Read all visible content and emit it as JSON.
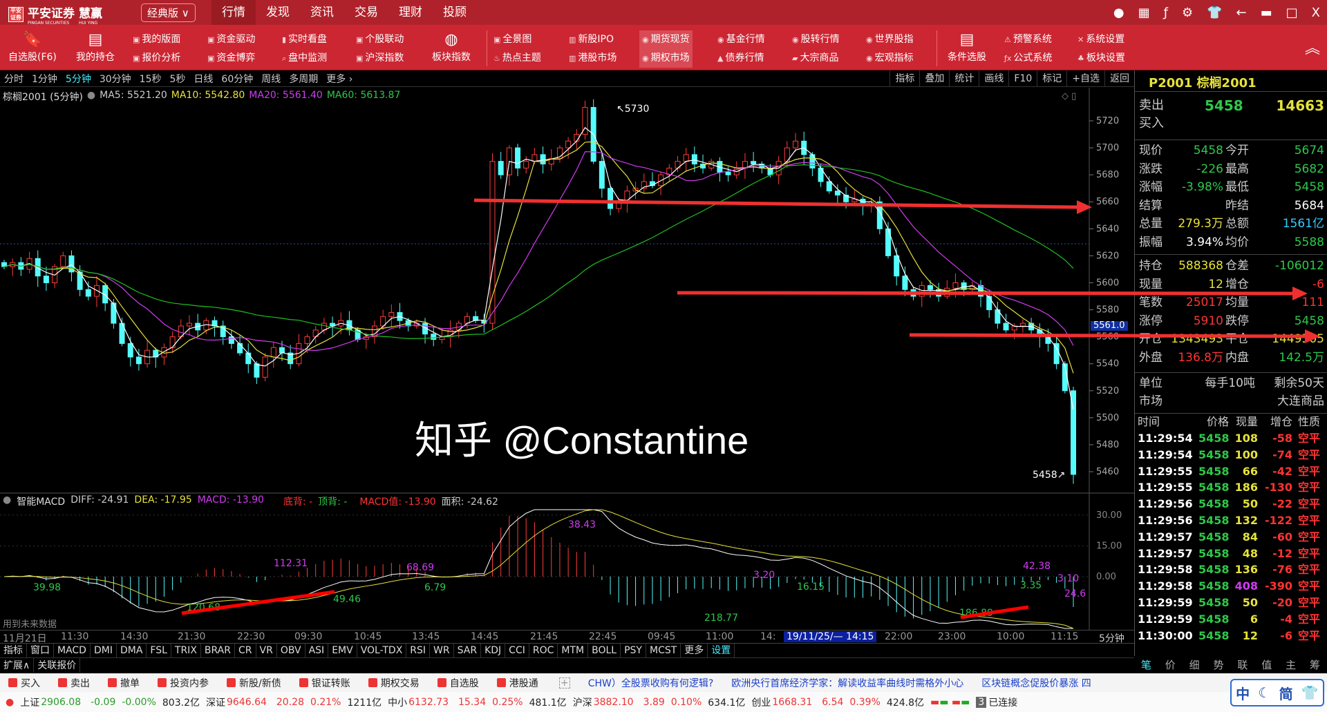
{
  "app": {
    "brand": "平安证券",
    "brand_en": "PINGAN SECURITIES",
    "product": "慧赢",
    "product_en": "HUI YING",
    "edition": "经典版 ∨",
    "nav": [
      "行情",
      "发现",
      "资讯",
      "交易",
      "理财",
      "投顾"
    ],
    "nav_active": "行情"
  },
  "toolbar": {
    "big": [
      {
        "label": "自选股(F6)",
        "icon": "bookmark-icon"
      },
      {
        "label": "我的持仓",
        "icon": "holdings-icon"
      },
      {
        "label": "板块指数",
        "icon": "globe-icon"
      },
      {
        "label": "条件选股",
        "icon": "filter-doc-icon"
      }
    ],
    "pairs": [
      [
        "我的版面",
        "报价分析"
      ],
      [
        "资金驱动",
        "资金博弈"
      ],
      [
        "实时看盘",
        "盘中监测"
      ],
      [
        "个股联动",
        "沪深指数"
      ],
      [
        "全景图",
        "热点主题"
      ],
      [
        "新股IPO",
        "港股市场"
      ],
      [
        "期货现货",
        "期权市场"
      ],
      [
        "基金行情",
        "债券行情"
      ],
      [
        "股转行情",
        "大宗商品"
      ],
      [
        "世界股指",
        "宏观指标"
      ],
      [
        "预警系统",
        "公式系统"
      ],
      [
        "系统设置",
        "板块设置"
      ]
    ],
    "active": "期货现货"
  },
  "periods": [
    "分时",
    "1分钟",
    "5分钟",
    "30分钟",
    "15秒",
    "5秒",
    "日线",
    "60分钟",
    "周线",
    "多周期",
    "更多 ›"
  ],
  "period_active": "5分钟",
  "chart_tools": [
    "指标",
    "叠加",
    "统计",
    "画线",
    "F10",
    "标记",
    "+自选",
    "返回"
  ],
  "chart_header": {
    "symbol": "棕榈2001 (5分钟)",
    "ma5": "MA5: 5521.20",
    "ma10": "MA10: 5542.80",
    "ma20": "MA20: 5561.40",
    "ma60": "MA60: 5613.87"
  },
  "colors": {
    "up": "#ff3c3c",
    "down": "#54fcfc",
    "ma5": "#ffffff",
    "ma10": "#e6e23a",
    "ma20": "#d03cf0",
    "ma60": "#21c021",
    "toolbar": "#cc2633"
  },
  "chart_data": {
    "type": "candlestick",
    "ylim": [
      5450,
      5730
    ],
    "yticks": [
      5720,
      5700,
      5680,
      5660,
      5640,
      5620,
      5600,
      5580,
      5560,
      5540,
      5520,
      5500,
      5480,
      5460
    ],
    "closes": [
      5612,
      5615,
      5610,
      5618,
      5605,
      5600,
      5612,
      5620,
      5608,
      5595,
      5590,
      5598,
      5585,
      5570,
      5555,
      5545,
      5540,
      5550,
      5545,
      5552,
      5560,
      5568,
      5570,
      5565,
      5572,
      5568,
      5560,
      5555,
      5548,
      5540,
      5530,
      5545,
      5552,
      5548,
      5540,
      5555,
      5560,
      5565,
      5570,
      5568,
      5572,
      5565,
      5558,
      5560,
      5568,
      5575,
      5578,
      5572,
      5568,
      5570,
      5562,
      5558,
      5560,
      5565,
      5570,
      5575,
      5572,
      5570,
      5690,
      5680,
      5700,
      5685,
      5690,
      5695,
      5688,
      5692,
      5700,
      5705,
      5710,
      5730,
      5690,
      5670,
      5655,
      5660,
      5668,
      5670,
      5675,
      5672,
      5680,
      5685,
      5690,
      5695,
      5688,
      5685,
      5690,
      5682,
      5680,
      5685,
      5690,
      5688,
      5685,
      5680,
      5690,
      5700,
      5705,
      5695,
      5685,
      5675,
      5668,
      5665,
      5660,
      5662,
      5658,
      5660,
      5640,
      5620,
      5605,
      5595,
      5590,
      5598,
      5595,
      5590,
      5596,
      5600,
      5595,
      5598,
      5590,
      5580,
      5570,
      5565,
      5568,
      5570,
      5565,
      5560,
      5555,
      5540,
      5520,
      5458
    ],
    "high_label": "5730",
    "last_label": "5458",
    "cursor_price": "5561.0",
    "time_ticks": [
      "11月21日",
      "11:30",
      "14:30",
      "21:30",
      "22:30",
      "09:30",
      "10:45",
      "13:45",
      "14:45",
      "21:45",
      "22:45",
      "09:45",
      "11:00",
      "14:",
      "22:00",
      "23:00",
      "10:00",
      "11:15"
    ],
    "cursor_time": "19/11/25/— 14:15",
    "period_label": "5分钟",
    "macd": {
      "yticks": [
        "30.00",
        "15.00",
        "0.00"
      ],
      "annotations": [
        "39.98",
        "112.31",
        "68.69",
        "6.79",
        "49.46",
        "120.68",
        "38.43",
        "3.20",
        "16.15",
        "218.77",
        "42.38",
        "3.35",
        "3.10",
        "24.6",
        "186.89"
      ]
    }
  },
  "macd_header": {
    "name": "智能MACD",
    "diff": "DIFF: -24.91",
    "dea": "DEA: -17.95",
    "macd": "MACD: -13.90",
    "bottom_div": "底背: -",
    "top_div": "顶背: -",
    "macd_val": "MACD值: -13.90",
    "area": "面积: -24.62",
    "note": "用到未来数据"
  },
  "indicators": [
    "指标",
    "窗口",
    "MACD",
    "DMI",
    "DMA",
    "FSL",
    "TRIX",
    "BRAR",
    "CR",
    "VR",
    "OBV",
    "ASI",
    "EMV",
    "VOL-TDX",
    "RSI",
    "WR",
    "SAR",
    "KDJ",
    "CCI",
    "ROC",
    "MTM",
    "BOLL",
    "PSY",
    "MCST",
    "更多",
    "设置"
  ],
  "ext": [
    "扩展∧",
    "关联报价"
  ],
  "right_tabs": [
    "笔",
    "价",
    "细",
    "势",
    "联",
    "值",
    "主",
    "筹"
  ],
  "quote": {
    "title": "P2001 棕榈2001",
    "sell_label": "卖出",
    "sell_price": "5458",
    "sell_vol": "14663",
    "buy_label": "买入",
    "rows1": [
      [
        "现价",
        "5458",
        "今开",
        "5674"
      ],
      [
        "涨跌",
        "-226",
        "最高",
        "5682"
      ],
      [
        "涨幅",
        "-3.98%",
        "最低",
        "5458"
      ],
      [
        "结算",
        "",
        "昨结",
        "5684"
      ],
      [
        "总量",
        "279.3万",
        "总额",
        "1561亿"
      ],
      [
        "振幅",
        "3.94%",
        "均价",
        "5588"
      ]
    ],
    "rows2": [
      [
        "持仓",
        "588368",
        "仓差",
        "-106012"
      ],
      [
        "现量",
        "12",
        "增仓",
        "-6"
      ],
      [
        "笔数",
        "25017",
        "均量",
        "111"
      ],
      [
        "涨停",
        "5910",
        "跌停",
        "5458"
      ],
      [
        "开仓",
        "1343493",
        "平仓",
        "1449505"
      ],
      [
        "外盘",
        "136.8万",
        "内盘",
        "142.5万"
      ]
    ],
    "rows3": [
      [
        "单位",
        "每手10吨",
        "剩余50天"
      ],
      [
        "市场",
        "",
        "大连商品"
      ]
    ]
  },
  "ticks": {
    "headers": [
      "时间",
      "价格",
      "现量",
      "增仓",
      "性质"
    ],
    "rows": [
      [
        "11:29:54",
        "5458",
        "108",
        "-58",
        "空平"
      ],
      [
        "11:29:54",
        "5458",
        "100",
        "-74",
        "空平"
      ],
      [
        "11:29:55",
        "5458",
        "66",
        "-42",
        "空平"
      ],
      [
        "11:29:55",
        "5458",
        "186",
        "-130",
        "空平"
      ],
      [
        "11:29:56",
        "5458",
        "50",
        "-22",
        "空平"
      ],
      [
        "11:29:56",
        "5458",
        "132",
        "-122",
        "空平"
      ],
      [
        "11:29:57",
        "5458",
        "84",
        "-60",
        "空平"
      ],
      [
        "11:29:57",
        "5458",
        "48",
        "-12",
        "空平"
      ],
      [
        "11:29:58",
        "5458",
        "136",
        "-76",
        "空平"
      ],
      [
        "11:29:58",
        "5458",
        "408",
        "-390",
        "空平"
      ],
      [
        "11:29:59",
        "5458",
        "50",
        "-20",
        "空平"
      ],
      [
        "11:29:59",
        "5458",
        "6",
        "-4",
        "空平"
      ],
      [
        "11:30:00",
        "5458",
        "12",
        "-6",
        "空平"
      ]
    ]
  },
  "trade_bar": [
    "买入",
    "卖出",
    "撤单",
    "投资内参",
    "新股/新债",
    "银证转账",
    "期权交易",
    "自选股",
    "港股通"
  ],
  "news": [
    "CHW）全股票收购有何逻辑?",
    "欧洲央行首席经济学家：解读收益率曲线时需格外小心",
    "区块链概念促股价暴涨 四"
  ],
  "indices": [
    [
      "上证",
      "2906.08",
      "-0.09",
      "-0.00%",
      "803.2亿"
    ],
    [
      "深证",
      "9646.64",
      "20.28",
      "0.21%",
      "1211亿"
    ],
    [
      "中小",
      "6132.73",
      "15.34",
      "0.25%",
      "481.1亿"
    ],
    [
      "沪深",
      "3882.10",
      "3.89",
      "0.10%",
      "634.1亿"
    ],
    [
      "创业",
      "1668.31",
      "6.54",
      "0.39%",
      "424.8亿"
    ]
  ],
  "status": {
    "conn_count": "3",
    "conn": "已连接"
  },
  "ime": [
    "中",
    "☾",
    "简",
    "👕"
  ],
  "watermark": "知乎 @Constantine"
}
